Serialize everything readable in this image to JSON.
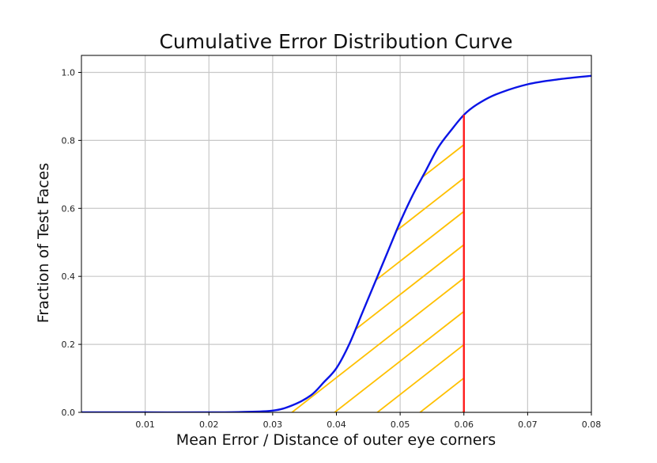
{
  "chart_data": {
    "type": "line",
    "title": "Cumulative Error Distribution Curve",
    "xlabel": "Mean Error / Distance of outer eye corners",
    "ylabel": "Fraction of Test Faces",
    "xlim": [
      0.0,
      0.08
    ],
    "ylim": [
      0.0,
      1.05
    ],
    "x_ticks": [
      "0.01",
      "0.02",
      "0.03",
      "0.04",
      "0.05",
      "0.06",
      "0.07",
      "0.08"
    ],
    "y_ticks": [
      "0.0",
      "0.2",
      "0.4",
      "0.6",
      "0.8",
      "1.0"
    ],
    "grid": true,
    "series": [
      {
        "color": "#0a14e6",
        "x": [
          0.0,
          0.01,
          0.02,
          0.025,
          0.03,
          0.033,
          0.036,
          0.038,
          0.04,
          0.042,
          0.044,
          0.046,
          0.048,
          0.05,
          0.052,
          0.054,
          0.056,
          0.058,
          0.06,
          0.062,
          0.065,
          0.07,
          0.075,
          0.08
        ],
        "y": [
          0.0,
          0.0,
          0.0,
          0.001,
          0.005,
          0.02,
          0.05,
          0.088,
          0.13,
          0.2,
          0.29,
          0.38,
          0.47,
          0.56,
          0.64,
          0.71,
          0.78,
          0.83,
          0.875,
          0.905,
          0.935,
          0.965,
          0.98,
          0.99
        ]
      }
    ],
    "threshold": {
      "x": 0.06,
      "color": "#ff1a1a"
    },
    "shaded_region": {
      "from_x": 0.0,
      "to_x": 0.06,
      "hatch": "diagonal",
      "color": "#ffc000"
    }
  }
}
